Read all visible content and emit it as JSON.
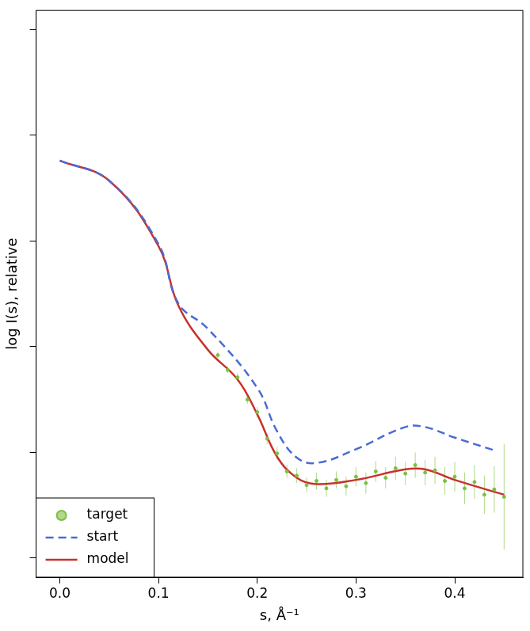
{
  "chart_data": {
    "type": "line",
    "x_label": "s, Å⁻¹",
    "y_label": "log I(s), relative",
    "xlim": [
      -0.024,
      0.469
    ],
    "ylim": [
      -0.18,
      5.18
    ],
    "xticks": [
      {
        "value": 0,
        "label": "0.0"
      },
      0.1,
      0.2,
      0.3,
      0.4
    ],
    "yticks": [
      0,
      1,
      2,
      3,
      4,
      5
    ],
    "tick_labels": "x",
    "grid": false,
    "legend": "bottom-left",
    "series": [
      {
        "name": "target",
        "type": "scatter",
        "marker": "circle",
        "color": "#7cbf3f",
        "x": [
          0.16,
          0.17,
          0.18,
          0.19,
          0.2,
          0.21,
          0.22,
          0.23,
          0.24,
          0.25,
          0.26,
          0.27,
          0.28,
          0.29,
          0.3,
          0.31,
          0.32,
          0.33,
          0.34,
          0.35,
          0.36,
          0.37,
          0.38,
          0.39,
          0.4,
          0.41,
          0.42,
          0.43,
          0.44,
          0.45
        ],
        "values": [
          1.92,
          1.78,
          1.71,
          1.5,
          1.38,
          1.13,
          0.99,
          0.82,
          0.78,
          0.69,
          0.73,
          0.66,
          0.74,
          0.68,
          0.77,
          0.71,
          0.82,
          0.76,
          0.85,
          0.8,
          0.88,
          0.81,
          0.83,
          0.73,
          0.77,
          0.66,
          0.72,
          0.6,
          0.65,
          0.58
        ],
        "errors": [
          0.03,
          0.03,
          0.04,
          0.04,
          0.05,
          0.05,
          0.06,
          0.06,
          0.07,
          0.07,
          0.08,
          0.08,
          0.08,
          0.09,
          0.09,
          0.1,
          0.1,
          0.1,
          0.11,
          0.11,
          0.12,
          0.12,
          0.13,
          0.13,
          0.14,
          0.15,
          0.16,
          0.18,
          0.22,
          0.5
        ]
      },
      {
        "name": "start",
        "type": "line",
        "line_style": "dashed",
        "color": "#4a6bd6",
        "x": [
          0.0,
          0.05,
          0.1,
          0.12,
          0.15,
          0.2,
          0.22,
          0.24,
          0.26,
          0.3,
          0.35,
          0.37,
          0.4,
          0.44
        ],
        "values": [
          3.76,
          3.57,
          2.97,
          2.41,
          2.17,
          1.61,
          1.2,
          0.95,
          0.9,
          1.03,
          1.24,
          1.24,
          1.14,
          1.02
        ]
      },
      {
        "name": "model",
        "type": "line",
        "line_style": "solid",
        "color": "#c8322a",
        "x": [
          0.0,
          0.05,
          0.1,
          0.12,
          0.15,
          0.18,
          0.2,
          0.22,
          0.24,
          0.26,
          0.3,
          0.35,
          0.37,
          0.4,
          0.45
        ],
        "values": [
          3.76,
          3.57,
          2.95,
          2.39,
          1.97,
          1.69,
          1.36,
          0.96,
          0.76,
          0.7,
          0.74,
          0.84,
          0.84,
          0.74,
          0.6
        ]
      }
    ]
  }
}
